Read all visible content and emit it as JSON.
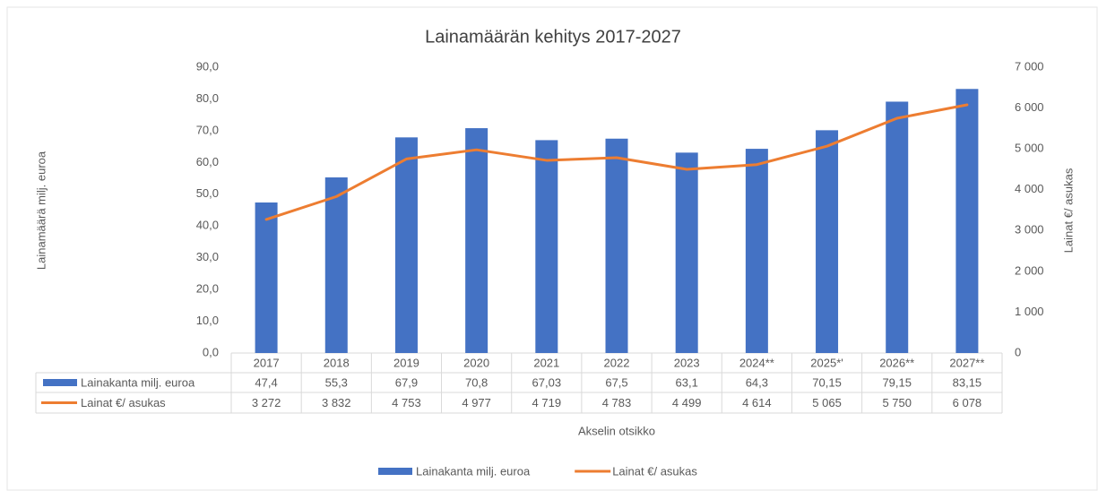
{
  "chart_data": {
    "type": "bar_line",
    "title": "Lainamäärän kehitys 2017-2027",
    "ylabel": "Lainamäärä milj. euroa",
    "y2label": "Lainat €/ asukas",
    "xlabel": "Akselin otsikko",
    "categories": [
      "2017",
      "2018",
      "2019",
      "2020",
      "2021",
      "2022",
      "2023",
      "2024**",
      "2025*'",
      "2026**",
      "2027**"
    ],
    "series": [
      {
        "name": "Lainakanta milj. euroa",
        "color": "#4472c4",
        "type": "bar",
        "values": [
          47.4,
          55.3,
          67.9,
          70.8,
          67.03,
          67.5,
          63.1,
          64.3,
          70.15,
          79.15,
          83.15
        ],
        "value_labels": [
          "47,4",
          "55,3",
          "67,9",
          "70,8",
          "67,03",
          "67,5",
          "63,1",
          "64,3",
          "70,15",
          "79,15",
          "83,15"
        ]
      },
      {
        "name": "Lainat €/ asukas",
        "color": "#ed7d31",
        "type": "line",
        "axis": "y2",
        "values": [
          3272,
          3832,
          4753,
          4977,
          4719,
          4783,
          4499,
          4614,
          5065,
          5750,
          6078
        ],
        "value_labels": [
          "3 272",
          "3 832",
          "4 753",
          "4 977",
          "4 719",
          "4 783",
          "4 499",
          "4 614",
          "5 065",
          "5 750",
          "6 078"
        ]
      }
    ],
    "ylim": [
      0,
      90
    ],
    "yticks": [
      {
        "value": 0,
        "label": "0,0"
      },
      {
        "value": 10,
        "label": "10,0"
      },
      {
        "value": 20,
        "label": "20,0"
      },
      {
        "value": 30,
        "label": "30,0"
      },
      {
        "value": 40,
        "label": "40,0"
      },
      {
        "value": 50,
        "label": "50,0"
      },
      {
        "value": 60,
        "label": "60,0"
      },
      {
        "value": 70,
        "label": "70,0"
      },
      {
        "value": 80,
        "label": "80,0"
      },
      {
        "value": 90,
        "label": "90,0"
      }
    ],
    "y2lim": [
      0,
      7000
    ],
    "y2ticks": [
      0,
      {
        "value": 1000,
        "label": "1 000"
      },
      {
        "value": 2000,
        "label": "2 000"
      },
      {
        "value": 3000,
        "label": "3 000"
      },
      {
        "value": 4000,
        "label": "4 000"
      },
      {
        "value": 5000,
        "label": "5 000"
      },
      {
        "value": 6000,
        "label": "6 000"
      },
      {
        "value": 7000,
        "label": "7 000"
      }
    ],
    "legend": "bottom"
  }
}
